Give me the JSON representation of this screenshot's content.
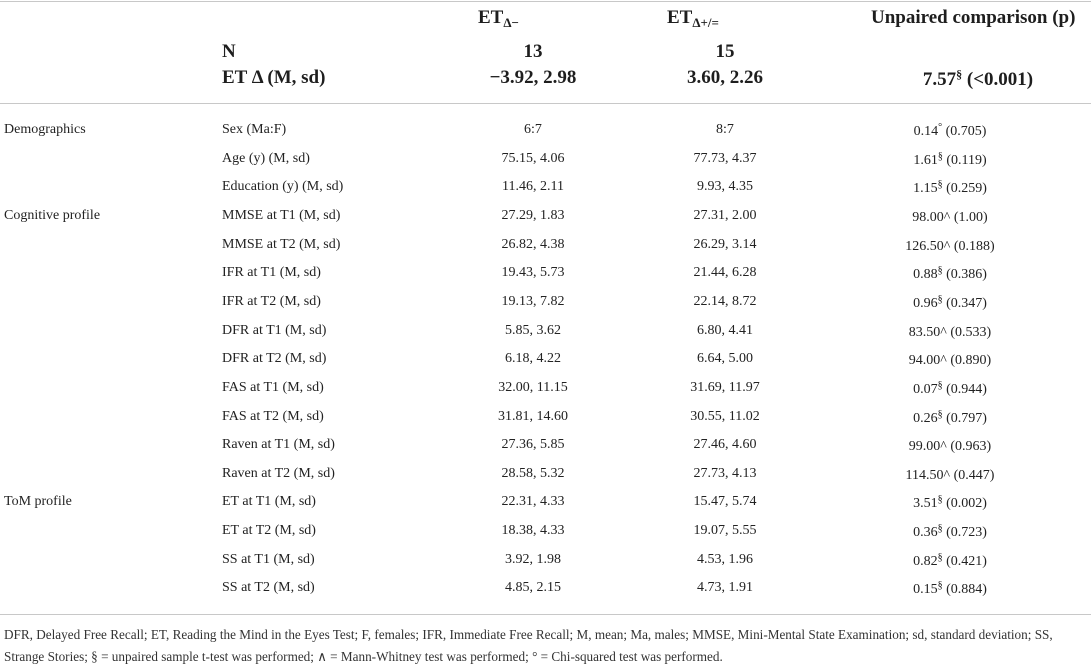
{
  "header": {
    "col_g1": "ET",
    "col_g1_sub": "Δ−",
    "col_g2": "ET",
    "col_g2_sub": "Δ+/=",
    "col_cmp": "Unpaired comparison (p)",
    "n_label": "N",
    "n_g1": "13",
    "n_g2": "15",
    "etd_label": "ET Δ (M, sd)",
    "etd_g1": "−3.92, 2.98",
    "etd_g2": "3.60, 2.26",
    "etd_cmp_value": "7.57",
    "etd_cmp_mark": "§",
    "etd_cmp_p": " (<0.001)"
  },
  "rows": [
    {
      "section": "Demographics",
      "variable": "Sex (Ma:F)",
      "g1": "6:7",
      "g2": "8:7",
      "stat": "0.14",
      "mark": "°",
      "p": " (0.705)"
    },
    {
      "section": "",
      "variable": "Age (y) (M, sd)",
      "g1": "75.15, 4.06",
      "g2": "77.73, 4.37",
      "stat": "1.61",
      "mark": "§",
      "p": " (0.119)"
    },
    {
      "section": "",
      "variable": "Education (y) (M, sd)",
      "g1": "11.46, 2.11",
      "g2": "9.93, 4.35",
      "stat": "1.15",
      "mark": "§",
      "p": " (0.259)"
    },
    {
      "section": "Cognitive profile",
      "variable": "MMSE at T1 (M, sd)",
      "g1": "27.29, 1.83",
      "g2": "27.31, 2.00",
      "stat": "98.00^",
      "mark": "",
      "p": " (1.00)"
    },
    {
      "section": "",
      "variable": "MMSE at T2 (M, sd)",
      "g1": "26.82, 4.38",
      "g2": "26.29, 3.14",
      "stat": "126.50^",
      "mark": "",
      "p": " (0.188)"
    },
    {
      "section": "",
      "variable": "IFR at T1 (M, sd)",
      "g1": "19.43, 5.73",
      "g2": "21.44, 6.28",
      "stat": "0.88",
      "mark": "§",
      "p": " (0.386)"
    },
    {
      "section": "",
      "variable": "IFR at T2 (M, sd)",
      "g1": "19.13, 7.82",
      "g2": "22.14, 8.72",
      "stat": "0.96",
      "mark": "§",
      "p": " (0.347)"
    },
    {
      "section": "",
      "variable": "DFR at T1 (M, sd)",
      "g1": "5.85, 3.62",
      "g2": "6.80, 4.41",
      "stat": "83.50^",
      "mark": "",
      "p": " (0.533)"
    },
    {
      "section": "",
      "variable": "DFR at T2 (M, sd)",
      "g1": "6.18, 4.22",
      "g2": "6.64, 5.00",
      "stat": "94.00^",
      "mark": "",
      "p": " (0.890)"
    },
    {
      "section": "",
      "variable": "FAS at T1 (M, sd)",
      "g1": "32.00, 11.15",
      "g2": "31.69, 11.97",
      "stat": "0.07",
      "mark": "§",
      "p": " (0.944)"
    },
    {
      "section": "",
      "variable": "FAS at T2 (M, sd)",
      "g1": "31.81, 14.60",
      "g2": "30.55, 11.02",
      "stat": "0.26",
      "mark": "§",
      "p": " (0.797)"
    },
    {
      "section": "",
      "variable": "Raven at T1 (M, sd)",
      "g1": "27.36, 5.85",
      "g2": "27.46, 4.60",
      "stat": "99.00^",
      "mark": "",
      "p": " (0.963)"
    },
    {
      "section": "",
      "variable": "Raven at T2 (M, sd)",
      "g1": "28.58, 5.32",
      "g2": "27.73, 4.13",
      "stat": "114.50^",
      "mark": "",
      "p": " (0.447)"
    },
    {
      "section": "ToM profile",
      "variable": "ET at T1 (M, sd)",
      "g1": "22.31, 4.33",
      "g2": "15.47, 5.74",
      "stat": "3.51",
      "mark": "§",
      "p": " (0.002)"
    },
    {
      "section": "",
      "variable": "ET at T2 (M, sd)",
      "g1": "18.38, 4.33",
      "g2": "19.07, 5.55",
      "stat": "0.36",
      "mark": "§",
      "p": " (0.723)"
    },
    {
      "section": "",
      "variable": "SS at T1 (M, sd)",
      "g1": "3.92, 1.98",
      "g2": "4.53, 1.96",
      "stat": "0.82",
      "mark": "§",
      "p": " (0.421)"
    },
    {
      "section": "",
      "variable": "SS at T2 (M, sd)",
      "g1": "4.85, 2.15",
      "g2": "4.73, 1.91",
      "stat": "0.15",
      "mark": "§",
      "p": " (0.884)"
    }
  ],
  "footnote": "DFR, Delayed Free Recall; ET, Reading the Mind in the Eyes Test; F, females; IFR, Immediate Free Recall; M, mean; Ma, males; MMSE, Mini-Mental State Examination; sd, standard deviation; SS, Strange Stories; § = unpaired sample t-test was performed; ∧ = Mann-Whitney test was performed; ° = Chi-squared test was performed."
}
